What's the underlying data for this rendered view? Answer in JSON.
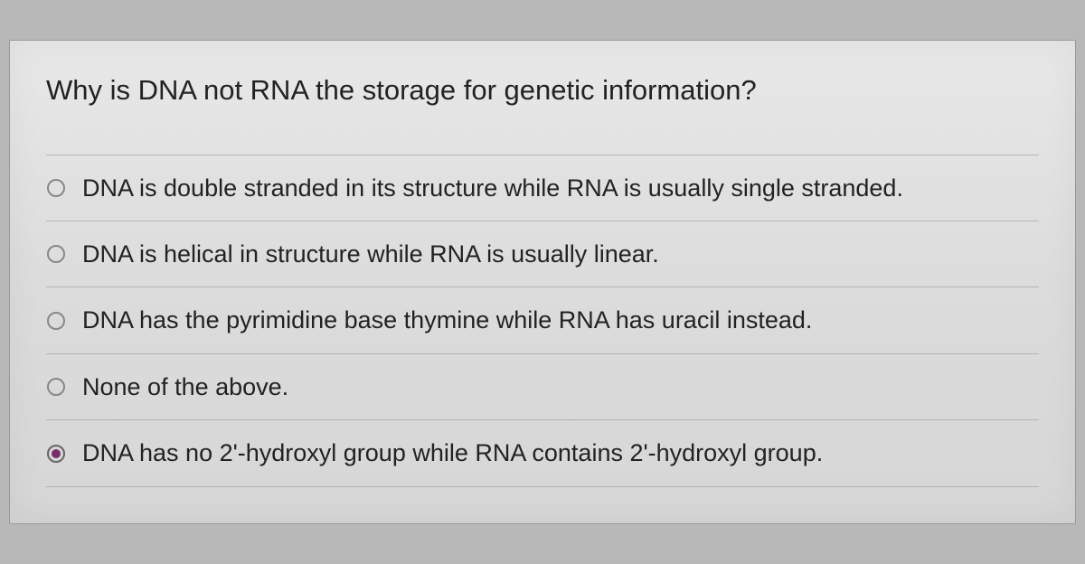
{
  "quiz": {
    "question": "Why is DNA not RNA the storage for genetic information?",
    "options": [
      {
        "label": "DNA is double stranded in its structure while RNA is usually single stranded.",
        "selected": false
      },
      {
        "label": "DNA is helical in structure while RNA is usually linear.",
        "selected": false
      },
      {
        "label": "DNA has the pyrimidine base thymine while RNA has uracil instead.",
        "selected": false
      },
      {
        "label": "None of the above.",
        "selected": false
      },
      {
        "label": "DNA has no 2'-hydroxyl group while RNA contains 2'-hydroxyl group.",
        "selected": true
      }
    ],
    "radio_selected_color": "#7a2d6b",
    "radio_border_color": "#888",
    "text_color": "#222",
    "panel_bg_top": "#e8e8e8",
    "panel_bg_bottom": "#d6d6d6",
    "divider_color": "rgba(120,120,120,0.4)",
    "question_fontsize": 31,
    "option_fontsize": 27
  }
}
